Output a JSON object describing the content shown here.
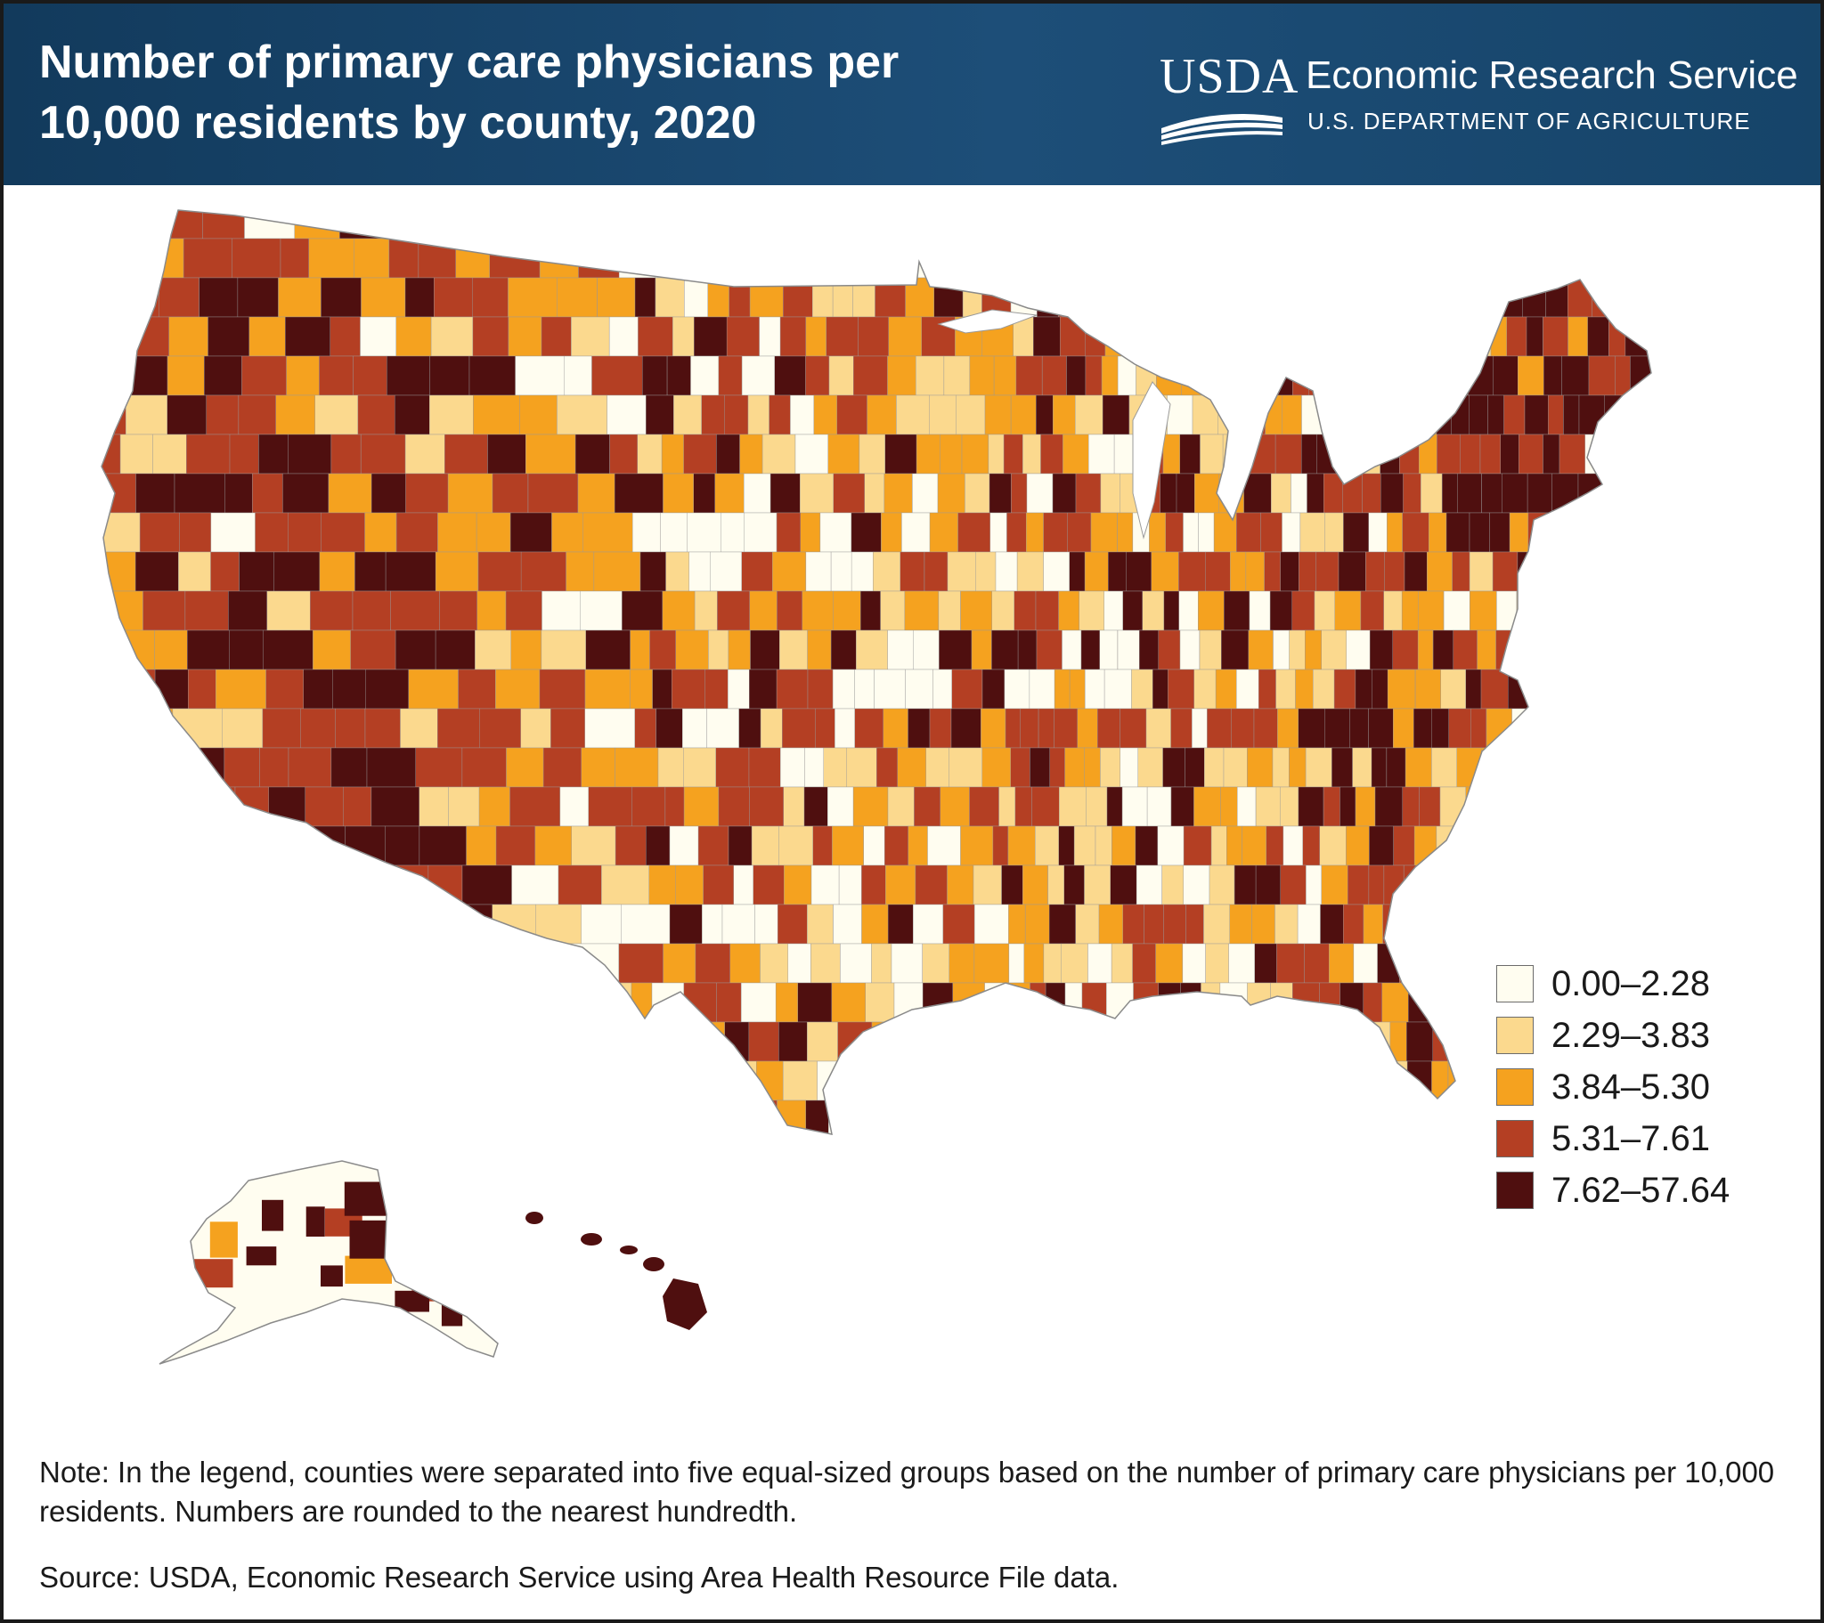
{
  "header": {
    "title_line1": "Number of primary care physicians per",
    "title_line2": "10,000 residents by county, 2020",
    "logo_text": "USDA",
    "agency": "Economic Research Service",
    "department": "U.S. DEPARTMENT OF AGRICULTURE"
  },
  "colors": {
    "header_bg": "#1d4e78",
    "class_0": "#fffdf0",
    "class_1": "#fbd98e",
    "class_2": "#f5a21f",
    "class_3": "#b43f23",
    "class_4": "#4f0f0f"
  },
  "legend": {
    "items": [
      {
        "label": "0.00–2.28",
        "color": "#fffdf0"
      },
      {
        "label": "2.29–3.83",
        "color": "#fbd98e"
      },
      {
        "label": "3.84–5.30",
        "color": "#f5a21f"
      },
      {
        "label": "5.31–7.61",
        "color": "#b43f23"
      },
      {
        "label": "7.62–57.64",
        "color": "#4f0f0f"
      }
    ]
  },
  "map": {
    "type": "choropleth",
    "geography": "U.S. counties",
    "insets": [
      "Alaska",
      "Hawaii"
    ]
  },
  "footer": {
    "note": "Note: In the legend, counties were separated into five equal-sized groups based on the number of primary care physicians per 10,000 residents. Numbers are rounded to the nearest hundredth.",
    "source": "Source: USDA, Economic Research Service using Area Health Resource File data."
  }
}
